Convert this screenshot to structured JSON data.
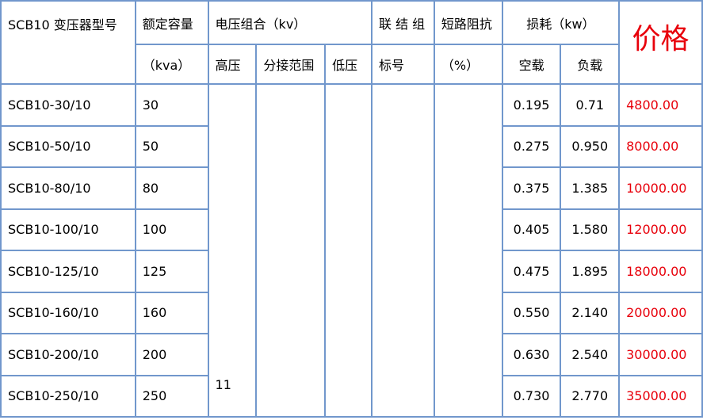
{
  "header": {
    "model": "SCB10 变压器型号",
    "capacity": "额定容量",
    "capacity_unit": "（kva）",
    "voltage": "电压组合（kv）",
    "hv": "高压",
    "tap": "分接范围",
    "lv": "低压",
    "connection": "联 结 组",
    "connection2": "标号",
    "impedance": "短路阻抗",
    "impedance_unit": "（%）",
    "loss": "损耗（kw）",
    "no_load": "空载",
    "load": "负载",
    "price": "价格"
  },
  "hv_value": "11",
  "rows": [
    {
      "model": "SCB10-30/10",
      "capacity": "30",
      "no_load": "0.195",
      "load": "0.71",
      "price": "4800.00"
    },
    {
      "model": "SCB10-50/10",
      "capacity": "50",
      "no_load": "0.275",
      "load": "0.950",
      "price": "8000.00"
    },
    {
      "model": "SCB10-80/10",
      "capacity": "80",
      "no_load": "0.375",
      "load": "1.385",
      "price": "10000.00"
    },
    {
      "model": "SCB10-100/10",
      "capacity": "100",
      "no_load": "0.405",
      "load": "1.580",
      "price": "12000.00"
    },
    {
      "model": "SCB10-125/10",
      "capacity": "125",
      "no_load": "0.475",
      "load": "1.895",
      "price": "18000.00"
    },
    {
      "model": "SCB10-160/10",
      "capacity": "160",
      "no_load": "0.550",
      "load": "2.140",
      "price": "20000.00"
    },
    {
      "model": "SCB10-200/10",
      "capacity": "200",
      "no_load": "0.630",
      "load": "2.540",
      "price": "30000.00"
    },
    {
      "model": "SCB10-250/10",
      "capacity": "250",
      "no_load": "0.730",
      "load": "2.770",
      "price": "35000.00"
    }
  ],
  "colors": {
    "border": "#7197cc",
    "price": "#e8000b"
  }
}
